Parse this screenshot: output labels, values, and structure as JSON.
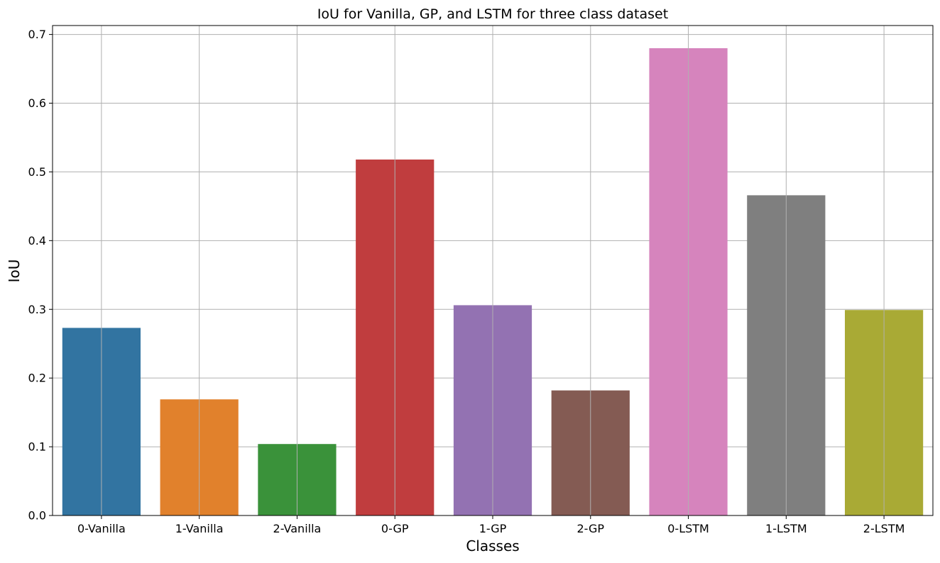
{
  "chart_data": {
    "type": "bar",
    "title": "IoU for Vanilla, GP, and LSTM for three class dataset",
    "xlabel": "Classes",
    "ylabel": "IoU",
    "categories": [
      "0-Vanilla",
      "1-Vanilla",
      "2-Vanilla",
      "0-GP",
      "1-GP",
      "2-GP",
      "0-LSTM",
      "1-LSTM",
      "2-LSTM"
    ],
    "values": [
      0.273,
      0.169,
      0.104,
      0.518,
      0.306,
      0.182,
      0.68,
      0.466,
      0.299
    ],
    "colors": [
      "#3274a1",
      "#e1812c",
      "#3a923a",
      "#c03d3e",
      "#9372b2",
      "#845b53",
      "#d684bd",
      "#7f7f7f",
      "#a9aa35"
    ],
    "ylim": [
      0,
      0.713
    ],
    "yticks": [
      "0.0",
      "0.1",
      "0.2",
      "0.3",
      "0.4",
      "0.5",
      "0.6",
      "0.7"
    ],
    "grid": true,
    "legend": "none"
  }
}
